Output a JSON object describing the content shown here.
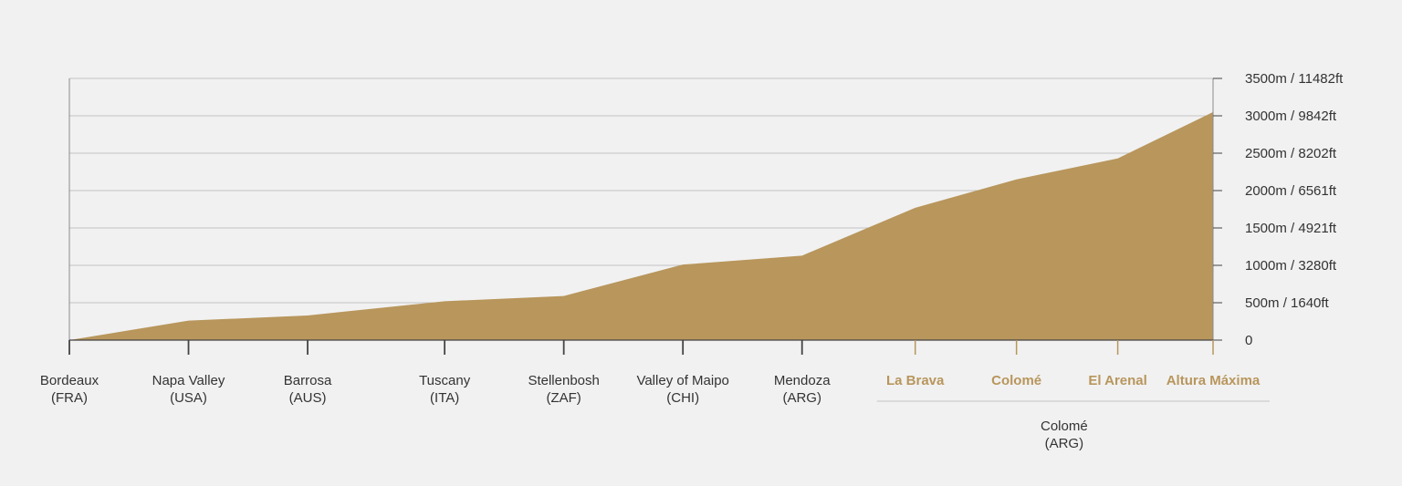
{
  "chart_data": {
    "type": "area",
    "title": "",
    "xlabel": "",
    "ylabel": "",
    "ylim": [
      0,
      3500
    ],
    "grid": true,
    "y_ticks": [
      {
        "value": 0,
        "label": "0"
      },
      {
        "value": 500,
        "label": "500m / 1640ft"
      },
      {
        "value": 1000,
        "label": "1000m / 3280ft"
      },
      {
        "value": 1500,
        "label": "1500m / 4921ft"
      },
      {
        "value": 2000,
        "label": "2000m / 6561ft"
      },
      {
        "value": 2500,
        "label": "2500m / 8202ft"
      },
      {
        "value": 3000,
        "label": "3000m / 9842ft"
      },
      {
        "value": 3500,
        "label": "3500m / 11482ft"
      }
    ],
    "points": [
      {
        "pos": 0.0,
        "name": "Bordeaux",
        "country": "(FRA)",
        "value": 0,
        "highlight": false
      },
      {
        "pos": 1.0,
        "name": "Napa Valley",
        "country": "(USA)",
        "value": 260,
        "highlight": false
      },
      {
        "pos": 2.0,
        "name": "Barrosa",
        "country": "(AUS)",
        "value": 330,
        "highlight": false
      },
      {
        "pos": 3.15,
        "name": "Tuscany",
        "country": "(ITA)",
        "value": 520,
        "highlight": false
      },
      {
        "pos": 4.15,
        "name": "Stellenbosh",
        "country": "(ZAF)",
        "value": 590,
        "highlight": false
      },
      {
        "pos": 5.15,
        "name": "Valley of Maipo",
        "country": "(CHI)",
        "value": 1010,
        "highlight": false
      },
      {
        "pos": 6.15,
        "name": "Mendoza",
        "country": "(ARG)",
        "value": 1130,
        "highlight": false
      },
      {
        "pos": 7.1,
        "name": "La Brava",
        "country": "",
        "value": 1770,
        "highlight": true
      },
      {
        "pos": 7.95,
        "name": "Colomé",
        "country": "",
        "value": 2150,
        "highlight": true
      },
      {
        "pos": 8.8,
        "name": "El Arenal",
        "country": "",
        "value": 2430,
        "highlight": true
      },
      {
        "pos": 9.6,
        "name": "Altura Máxima",
        "country": "",
        "value": 3050,
        "highlight": true
      }
    ],
    "group_label": {
      "line1": "Colomé",
      "line2": "(ARG)"
    },
    "colors": {
      "fill": "#b8965c",
      "highlight_text": "#b8965c",
      "text": "#333333",
      "grid": "#c4c4c4",
      "axis": "#8a8a8a",
      "background": "#f1f1f1"
    }
  }
}
